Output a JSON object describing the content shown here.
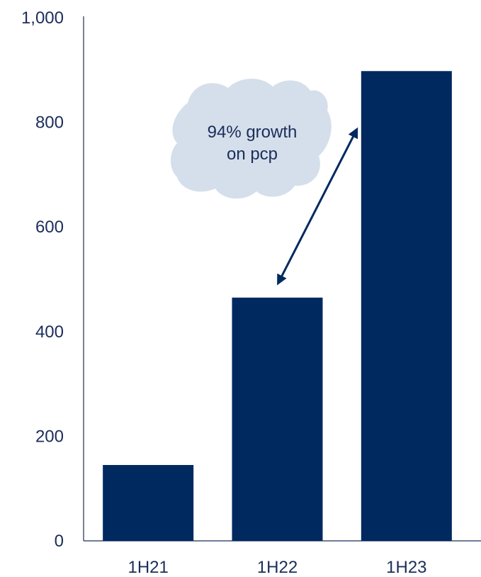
{
  "chart_data": {
    "type": "bar",
    "categories": [
      "1H21",
      "1H22",
      "1H23"
    ],
    "values": [
      145,
      465,
      898
    ],
    "ylim": [
      0,
      1000
    ],
    "yticks": [
      0,
      200,
      400,
      600,
      800,
      1000
    ],
    "ytick_labels": [
      "0",
      "200",
      "400",
      "600",
      "800",
      "1,000"
    ],
    "grid": false,
    "bar_color": "#002960",
    "axis_color": "#1b2d5a",
    "annotation": {
      "lines": [
        "94% growth",
        "on pcp"
      ],
      "from_category": "1H22",
      "to_category": "1H23",
      "bubble_color": "#d5dfeb",
      "arrow_color": "#002960"
    }
  }
}
